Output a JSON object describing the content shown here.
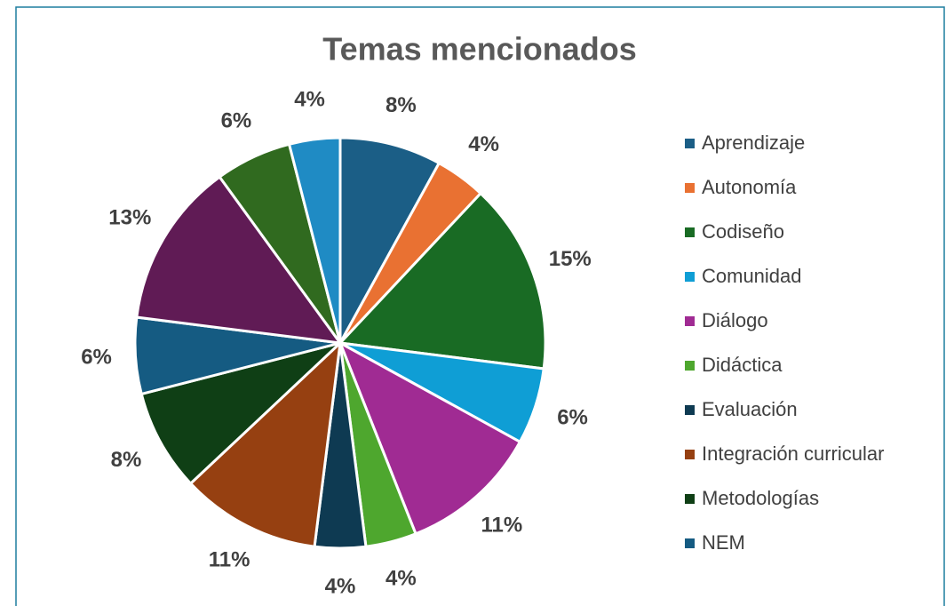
{
  "chart_data": {
    "type": "pie",
    "title": "Temas mencionados",
    "categories": [
      "Aprendizaje",
      "Autonomía",
      "Codiseño",
      "Comunidad",
      "Diálogo",
      "Didáctica",
      "Evaluación",
      "Integración curricular",
      "Metodologías",
      "NEM",
      null,
      null,
      null
    ],
    "values": [
      8,
      4,
      15,
      6,
      11,
      4,
      4,
      11,
      8,
      6,
      13,
      6,
      4
    ],
    "value_labels": [
      "8%",
      "4%",
      "15%",
      "6%",
      "11%",
      "4%",
      "4%",
      "11%",
      "8%",
      "6%",
      "13%",
      "6%",
      "4%"
    ],
    "colors": [
      "#1b5e86",
      "#e97132",
      "#196b24",
      "#0f9ed5",
      "#a02b93",
      "#4ea72e",
      "#0e3a52",
      "#964011",
      "#0f3f15",
      "#155b82",
      "#601b55",
      "#306a1f",
      "#1f8bc4"
    ],
    "legend": "right"
  }
}
